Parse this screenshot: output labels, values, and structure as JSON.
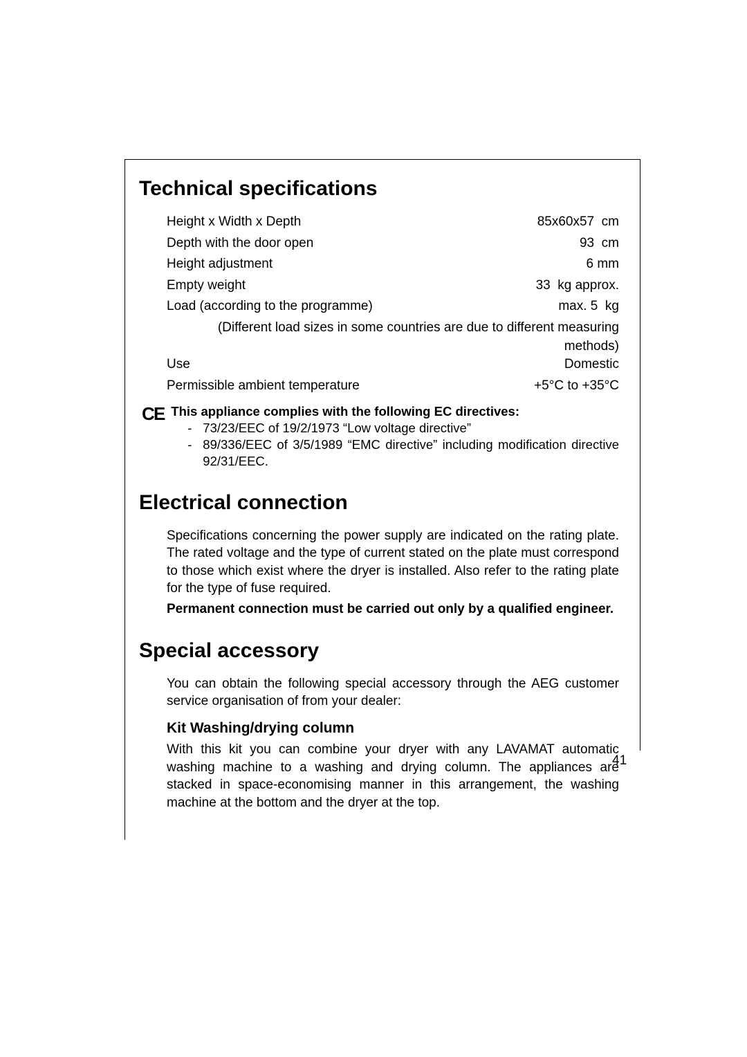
{
  "headings": {
    "tech": "Technical specifications",
    "electrical": "Electrical connection",
    "accessory": "Special accessory",
    "kit": "Kit Washing/drying column"
  },
  "specs": {
    "rows": [
      {
        "label": "Height x Width x Depth",
        "value": "85x60x57  cm"
      },
      {
        "label": "Depth with the door open",
        "value": "93  cm"
      },
      {
        "label": "Height adjustment",
        "value": "6 mm"
      },
      {
        "label": "Empty weight",
        "value": "33  kg approx."
      },
      {
        "label": "Load (according to the programme)",
        "value": "max. 5  kg"
      }
    ],
    "load_note": "(Different load sizes in some countries are due to different measuring methods)",
    "rows2": [
      {
        "label": "Use",
        "value": "Domestic"
      },
      {
        "label": "Permissible ambient temperature",
        "value": "+5°C to +35°C"
      }
    ]
  },
  "ce": {
    "title": "This appliance complies with the following EC directives:",
    "dir1": "73/23/EEC of 19/2/1973 “Low voltage directive”",
    "dir2": "89/336/EEC of 3/5/1989 “EMC directive” including modification directive 92/31/EEC."
  },
  "electrical": {
    "p1": "Specifications concerning the power supply are indicated on the rating plate. The rated voltage and the type of current stated on the plate must correspond to those which exist where the dryer is installed. Also refer to the rating plate for the type of fuse required.",
    "p2": "Permanent connection must be carried out only by a qualified engineer."
  },
  "accessory": {
    "p1": "You can obtain the following special accessory through the AEG customer service organisation of from your dealer:",
    "kit_p": "With this kit you can combine your dryer with any LAVAMAT automatic washing machine to a washing and drying column. The appliances are stacked in space-economising manner in this arrangement, the washing machine at the bottom and the dryer at the top."
  },
  "page_number": "41",
  "colors": {
    "text": "#000000",
    "bg": "#ffffff"
  }
}
